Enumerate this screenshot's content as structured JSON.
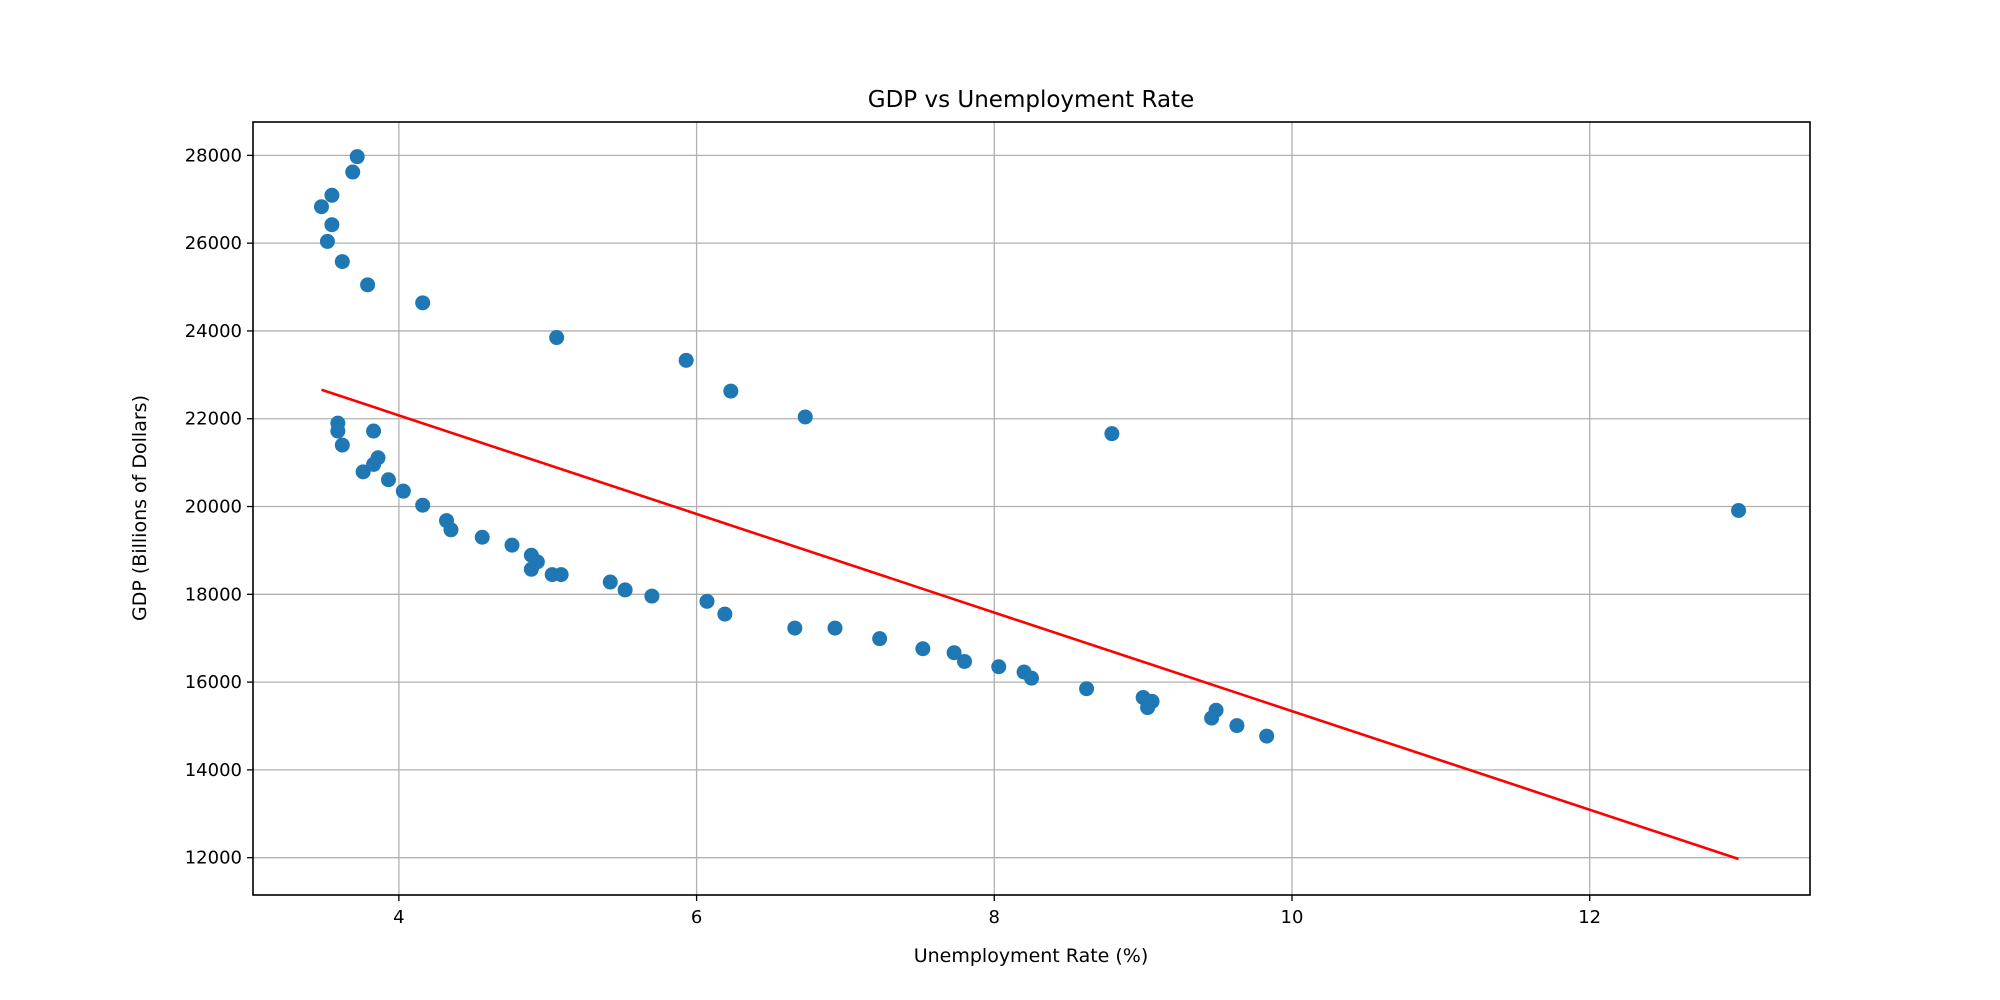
{
  "chart_data": {
    "type": "scatter",
    "title": "GDP vs Unemployment Rate",
    "xlabel": "Unemployment Rate (%)",
    "ylabel": "GDP (Billions of Dollars)",
    "xlim": [
      3.02,
      13.48
    ],
    "ylim": [
      11150,
      28760
    ],
    "xticks": [
      4,
      6,
      8,
      10,
      12
    ],
    "xtick_labels": [
      "4",
      "6",
      "8",
      "10",
      "12"
    ],
    "yticks": [
      12000,
      14000,
      16000,
      18000,
      20000,
      22000,
      24000,
      26000,
      28000
    ],
    "ytick_labels": [
      "12000",
      "14000",
      "16000",
      "18000",
      "20000",
      "22000",
      "24000",
      "26000",
      "28000"
    ],
    "grid": true,
    "colors": {
      "points": "#1f77b4",
      "line": "#ff0000"
    },
    "points": [
      [
        3.48,
        26830
      ],
      [
        3.55,
        27090
      ],
      [
        3.69,
        27620
      ],
      [
        3.72,
        27970
      ],
      [
        3.55,
        26420
      ],
      [
        3.52,
        26040
      ],
      [
        3.62,
        25580
      ],
      [
        3.79,
        25050
      ],
      [
        4.16,
        24640
      ],
      [
        5.06,
        23850
      ],
      [
        5.93,
        23330
      ],
      [
        6.23,
        22630
      ],
      [
        6.73,
        22040
      ],
      [
        8.79,
        21660
      ],
      [
        13.0,
        19910
      ],
      [
        3.59,
        21900
      ],
      [
        3.59,
        21720
      ],
      [
        3.62,
        21400
      ],
      [
        3.83,
        21720
      ],
      [
        3.76,
        20790
      ],
      [
        3.83,
        20960
      ],
      [
        3.86,
        21110
      ],
      [
        3.93,
        20610
      ],
      [
        4.03,
        20350
      ],
      [
        4.16,
        20030
      ],
      [
        4.32,
        19680
      ],
      [
        4.35,
        19470
      ],
      [
        4.56,
        19300
      ],
      [
        4.76,
        19120
      ],
      [
        4.89,
        18890
      ],
      [
        4.93,
        18740
      ],
      [
        4.89,
        18570
      ],
      [
        5.03,
        18450
      ],
      [
        5.09,
        18450
      ],
      [
        5.42,
        18280
      ],
      [
        5.52,
        18100
      ],
      [
        5.7,
        17960
      ],
      [
        6.07,
        17840
      ],
      [
        6.19,
        17550
      ],
      [
        6.66,
        17230
      ],
      [
        6.93,
        17230
      ],
      [
        7.23,
        16990
      ],
      [
        7.52,
        16760
      ],
      [
        7.73,
        16670
      ],
      [
        7.8,
        16470
      ],
      [
        8.03,
        16350
      ],
      [
        8.2,
        16230
      ],
      [
        8.25,
        16090
      ],
      [
        8.62,
        15850
      ],
      [
        9.0,
        15650
      ],
      [
        9.06,
        15560
      ],
      [
        9.03,
        15420
      ],
      [
        9.49,
        15360
      ],
      [
        9.46,
        15180
      ],
      [
        9.63,
        15010
      ],
      [
        9.83,
        14770
      ]
    ],
    "regression_line": [
      [
        3.48,
        22660
      ],
      [
        13.0,
        11970
      ]
    ]
  }
}
